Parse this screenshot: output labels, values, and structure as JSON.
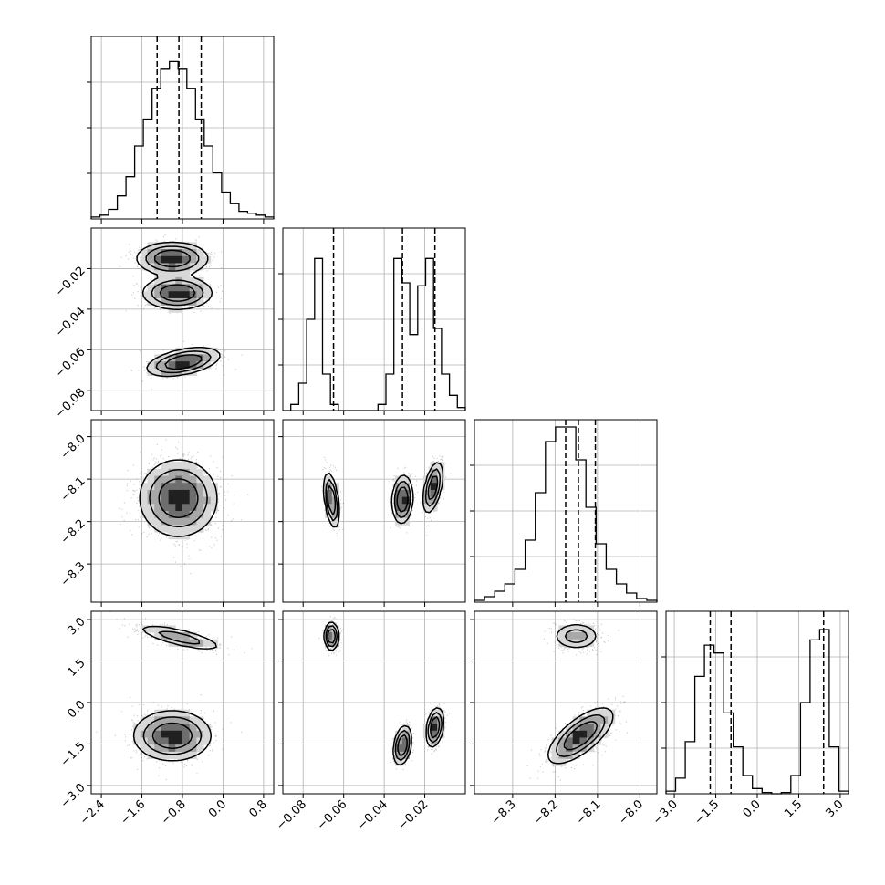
{
  "chart_data": {
    "type": "corner",
    "parameters": [
      {
        "range": [
          -2.6,
          1.0
        ],
        "ticks": [
          -2.4,
          -1.6,
          -0.8,
          0.0,
          0.8
        ],
        "tick_labels": [
          "−2.4",
          "−1.6",
          "−0.8",
          "0.0",
          "0.8"
        ],
        "quantiles": [
          -1.3,
          -0.87,
          -0.43
        ]
      },
      {
        "range": [
          -0.09,
          0.0
        ],
        "ticks": [
          -0.08,
          -0.06,
          -0.04,
          -0.02
        ],
        "tick_labels": [
          "−0.08",
          "−0.06",
          "−0.04",
          "−0.02"
        ],
        "quantiles": [
          -0.065,
          -0.031,
          -0.015
        ]
      },
      {
        "range": [
          -8.39,
          -7.96
        ],
        "ticks": [
          -8.3,
          -8.2,
          -8.1,
          -8.0
        ],
        "tick_labels": [
          "−8.3",
          "−8.2",
          "−8.1",
          "−8.0"
        ],
        "quantiles": [
          -8.175,
          -8.145,
          -8.105
        ]
      },
      {
        "range": [
          -3.3,
          3.3
        ],
        "ticks": [
          -3.0,
          -1.5,
          0.0,
          1.5,
          3.0
        ],
        "tick_labels": [
          "−3.0",
          "−1.5",
          "0.0",
          "1.5",
          "3.0"
        ],
        "quantiles": [
          -1.7,
          -0.95,
          2.4
        ]
      }
    ],
    "histograms": [
      [
        1,
        2,
        5,
        12,
        22,
        38,
        52,
        68,
        78,
        82,
        78,
        68,
        52,
        38,
        24,
        14,
        8,
        4,
        3,
        2,
        1
      ],
      [
        0,
        2,
        9,
        30,
        50,
        12,
        2,
        0,
        0,
        0,
        0,
        0,
        2,
        12,
        50,
        42,
        25,
        41,
        50,
        27,
        12,
        5,
        1
      ],
      [
        1,
        3,
        6,
        10,
        18,
        34,
        60,
        88,
        96,
        96,
        78,
        52,
        32,
        18,
        10,
        5,
        2,
        1
      ],
      [
        2,
        12,
        40,
        90,
        114,
        108,
        62,
        36,
        14,
        4,
        1,
        0,
        1,
        14,
        70,
        118,
        126,
        36,
        2
      ]
    ],
    "histogram_ymax": [
      95,
      60,
      100,
      140
    ],
    "modes": [
      [
        [
          {
            "x": -1.0,
            "y": -0.015,
            "sx": 0.35,
            "sy": 0.004,
            "r": 0.0,
            "w": 1.0
          },
          {
            "x": -0.9,
            "y": -0.032,
            "sx": 0.34,
            "sy": 0.004,
            "r": 0.0,
            "w": 1.0
          },
          {
            "x": -0.78,
            "y": -0.066,
            "sx": 0.36,
            "sy": 0.0035,
            "r": 0.45,
            "w": 1.0
          }
        ]
      ],
      [
        [
          {
            "x": -0.88,
            "y": -8.145,
            "sx": 0.38,
            "sy": 0.045,
            "r": 0.0,
            "w": 1.0
          }
        ],
        [
          {
            "x": -0.066,
            "y": -8.15,
            "sx": 0.0018,
            "sy": 0.032,
            "r": -0.45,
            "w": 1.0
          },
          {
            "x": -0.031,
            "y": -8.148,
            "sx": 0.0025,
            "sy": 0.028,
            "r": 0.1,
            "w": 1.0
          },
          {
            "x": -0.016,
            "y": -8.12,
            "sx": 0.0024,
            "sy": 0.03,
            "r": 0.5,
            "w": 0.9
          }
        ]
      ],
      [
        [
          {
            "x": -0.85,
            "y": 2.35,
            "sx": 0.45,
            "sy": 0.25,
            "r": -0.75,
            "w": 0.5
          },
          {
            "x": -1.0,
            "y": -1.2,
            "sx": 0.38,
            "sy": 0.45,
            "r": 0.0,
            "w": 1.0
          }
        ],
        [
          {
            "x": -0.066,
            "y": 2.4,
            "sx": 0.0017,
            "sy": 0.25,
            "r": 0.0,
            "w": 0.5
          },
          {
            "x": -0.031,
            "y": -1.55,
            "sx": 0.0022,
            "sy": 0.35,
            "r": 0.3,
            "w": 0.5
          },
          {
            "x": -0.015,
            "y": -0.9,
            "sx": 0.0021,
            "sy": 0.35,
            "r": 0.3,
            "w": 0.5
          }
        ],
        [
          {
            "x": -8.15,
            "y": 2.4,
            "sx": 0.028,
            "sy": 0.25,
            "r": 0.0,
            "w": 0.5
          },
          {
            "x": -8.14,
            "y": -1.2,
            "sx": 0.038,
            "sy": 0.5,
            "r": 0.7,
            "w": 1.0
          }
        ]
      ]
    ]
  }
}
